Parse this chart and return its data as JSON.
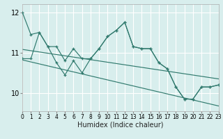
{
  "x_data": [
    0,
    1,
    2,
    3,
    4,
    5,
    6,
    7,
    8,
    9,
    10,
    11,
    12,
    13,
    14,
    15,
    16,
    17,
    18,
    19,
    20,
    21,
    22,
    23
  ],
  "y_line1": [
    12.0,
    11.45,
    11.5,
    11.15,
    11.15,
    10.8,
    11.1,
    10.85,
    10.85,
    11.1,
    11.4,
    11.55,
    11.75,
    11.15,
    11.1,
    11.1,
    10.75,
    10.6,
    10.15,
    9.85,
    9.85,
    10.15,
    10.15,
    10.2
  ],
  "y_line2": [
    10.85,
    10.85,
    11.5,
    11.15,
    10.75,
    10.45,
    10.8,
    10.5,
    10.85,
    11.1,
    11.4,
    11.55,
    11.75,
    11.15,
    11.1,
    11.1,
    10.75,
    10.6,
    10.15,
    9.85,
    9.85,
    10.15,
    10.15,
    10.2
  ],
  "trend1_x": [
    0,
    23
  ],
  "trend1_y": [
    11.08,
    10.35
  ],
  "trend2_x": [
    0,
    23
  ],
  "trend2_y": [
    10.82,
    9.68
  ],
  "line_color": "#317a6e",
  "bg_color": "#d8eeed",
  "grid_color": "#ffffff",
  "xlabel": "Humidex (Indice chaleur)",
  "xticks": [
    0,
    1,
    2,
    3,
    4,
    5,
    6,
    7,
    8,
    9,
    10,
    11,
    12,
    13,
    14,
    15,
    16,
    17,
    18,
    19,
    20,
    21,
    22,
    23
  ],
  "yticks": [
    10,
    11,
    12
  ],
  "xlim": [
    0,
    23
  ],
  "ylim": [
    9.55,
    12.2
  ]
}
